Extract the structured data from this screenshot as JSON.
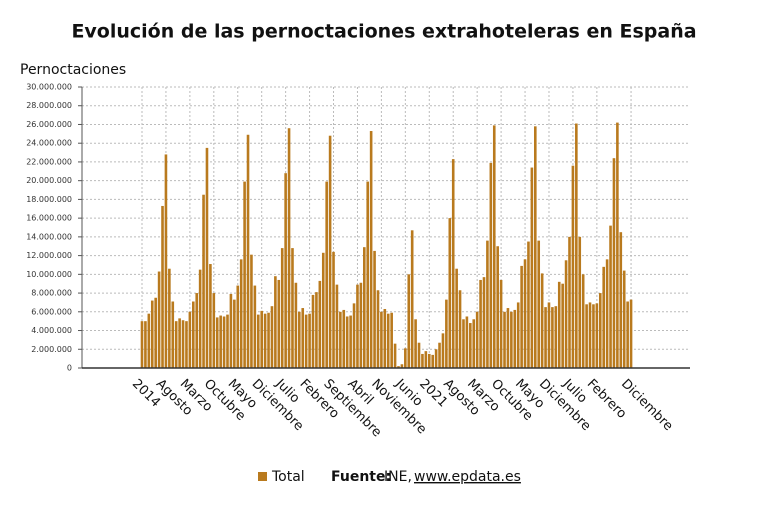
{
  "chart_data": {
    "type": "bar",
    "title": "Evolución de las pernoctaciones extrahoteleras en España",
    "y_label": "Pernoctaciones",
    "color": "#b97a1e",
    "grid": true,
    "legend": {
      "name": "Total"
    },
    "source": {
      "label": "Fuente:",
      "text": "INE,",
      "link": "www.epdata.es"
    },
    "ylim": [
      0,
      30000000
    ],
    "yticks": [
      {
        "value": 0,
        "label": "0"
      },
      {
        "value": 2000000,
        "label": "2.000.000"
      },
      {
        "value": 4000000,
        "label": "4.000.000"
      },
      {
        "value": 6000000,
        "label": "6.000.000"
      },
      {
        "value": 8000000,
        "label": "8.000.000"
      },
      {
        "value": 10000000,
        "label": "10.000.000"
      },
      {
        "value": 12000000,
        "label": "12.000.000"
      },
      {
        "value": 14000000,
        "label": "14.000.000"
      },
      {
        "value": 16000000,
        "label": "16.000.000"
      },
      {
        "value": 18000000,
        "label": "18.000.000"
      },
      {
        "value": 20000000,
        "label": "20.000.000"
      },
      {
        "value": 22000000,
        "label": "22.000.000"
      },
      {
        "value": 24000000,
        "label": "24.000.000"
      },
      {
        "value": 26000000,
        "label": "26.000.000"
      },
      {
        "value": 28000000,
        "label": "28.000.000"
      },
      {
        "value": 30000000,
        "label": "30.000.000"
      }
    ],
    "categories": [
      "2014",
      null,
      null,
      null,
      null,
      null,
      null,
      "Agosto",
      null,
      null,
      null,
      null,
      null,
      null,
      "Marzo",
      null,
      null,
      null,
      null,
      null,
      null,
      "Octubre",
      null,
      null,
      null,
      null,
      null,
      null,
      "Mayo",
      null,
      null,
      null,
      null,
      null,
      null,
      "Diciembre",
      null,
      null,
      null,
      null,
      null,
      null,
      "Julio",
      null,
      null,
      null,
      null,
      null,
      null,
      "Febrero",
      null,
      null,
      null,
      null,
      null,
      null,
      "Septiembre",
      null,
      null,
      null,
      null,
      null,
      null,
      "Abril",
      null,
      null,
      null,
      null,
      null,
      null,
      "Noviembre",
      null,
      null,
      null,
      null,
      null,
      null,
      "Junio",
      null,
      null,
      null,
      null,
      null,
      null,
      "2021",
      null,
      null,
      null,
      null,
      null,
      null,
      "Agosto",
      null,
      null,
      null,
      null,
      null,
      null,
      "Marzo",
      null,
      null,
      null,
      null,
      null,
      null,
      "Octubre",
      null,
      null,
      null,
      null,
      null,
      null,
      "Mayo",
      null,
      null,
      null,
      null,
      null,
      null,
      "Diciembre",
      null,
      null,
      null,
      null,
      null,
      null,
      "Julio",
      null,
      null,
      null,
      null,
      null,
      null,
      "Febrero",
      null,
      null,
      null,
      null,
      null,
      null,
      null,
      null,
      null,
      "Diciembre",
      null,
      null,
      null,
      null,
      null,
      null,
      null,
      null,
      null,
      null,
      null,
      null,
      null,
      null,
      null,
      null
    ],
    "values": [
      5000000,
      5000000,
      5800000,
      7200000,
      7500000,
      10300000,
      17300000,
      22800000,
      10600000,
      7100000,
      5000000,
      5300000,
      5100000,
      5000000,
      6000000,
      7100000,
      8000000,
      10500000,
      18500000,
      23500000,
      11100000,
      8000000,
      5400000,
      5600000,
      5500000,
      5700000,
      7900000,
      7300000,
      8800000,
      11600000,
      19900000,
      24900000,
      12100000,
      8800000,
      5700000,
      6100000,
      5800000,
      5900000,
      6600000,
      9800000,
      9400000,
      12800000,
      20800000,
      25600000,
      12800000,
      9100000,
      6000000,
      6400000,
      5700000,
      5800000,
      7800000,
      8100000,
      9300000,
      12300000,
      19900000,
      24800000,
      12400000,
      8900000,
      6000000,
      6200000,
      5500000,
      5600000,
      6900000,
      8900000,
      9100000,
      12900000,
      19900000,
      25300000,
      12500000,
      8300000,
      6000000,
      6300000,
      5800000,
      5900000,
      2600000,
      200000,
      400000,
      2100000,
      10000000,
      14700000,
      5200000,
      2700000,
      1500000,
      1800000,
      1500000,
      1400000,
      2000000,
      2700000,
      3700000,
      7300000,
      16000000,
      22300000,
      10600000,
      8300000,
      5200000,
      5500000,
      4800000,
      5200000,
      6000000,
      9400000,
      9700000,
      13600000,
      21900000,
      25900000,
      13000000,
      9400000,
      6000000,
      6400000,
      6000000,
      6200000,
      7000000,
      10900000,
      11600000,
      13500000,
      21400000,
      25800000,
      13600000,
      10100000,
      6500000,
      7000000,
      6500000,
      6600000,
      9200000,
      9000000,
      11500000,
      14000000,
      21600000,
      26100000,
      14000000,
      10000000,
      6800000,
      7000000,
      6800000,
      6900000,
      8000000,
      10800000,
      11600000,
      15200000,
      22400000,
      26200000,
      14500000,
      10400000,
      7100000,
      7300000,
      null,
      null,
      null,
      null,
      null,
      null,
      null,
      null,
      null,
      null,
      null,
      null,
      null,
      null,
      null,
      null
    ]
  }
}
